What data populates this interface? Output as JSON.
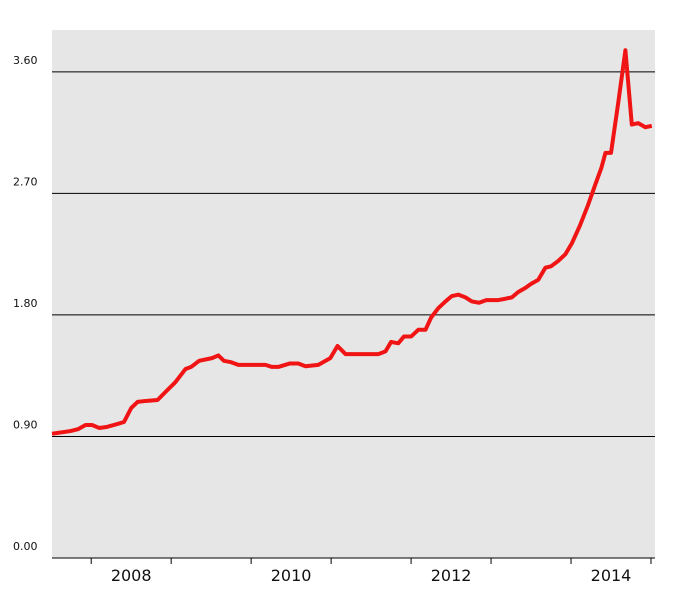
{
  "chart_data": {
    "type": "line",
    "x": [
      2007.51,
      2007.74,
      2007.84,
      2007.93,
      2008.01,
      2008.1,
      2008.19,
      2008.33,
      2008.41,
      2008.5,
      2008.58,
      2008.68,
      2008.83,
      2008.93,
      2009.05,
      2009.18,
      2009.25,
      2009.35,
      2009.51,
      2009.59,
      2009.66,
      2009.75,
      2009.84,
      2010.18,
      2010.26,
      2010.34,
      2010.48,
      2010.59,
      2010.68,
      2010.84,
      2010.99,
      2011.08,
      2011.18,
      2011.59,
      2011.68,
      2011.75,
      2011.84,
      2011.91,
      2012.0,
      2012.09,
      2012.18,
      2012.25,
      2012.34,
      2012.43,
      2012.51,
      2012.59,
      2012.68,
      2012.76,
      2012.85,
      2012.94,
      2013.09,
      2013.18,
      2013.26,
      2013.34,
      2013.43,
      2013.5,
      2013.59,
      2013.68,
      2013.75,
      2013.84,
      2013.93,
      2014.01,
      2014.11,
      2014.21,
      2014.3,
      2014.38,
      2014.43,
      2014.5,
      2014.59,
      2014.68,
      2014.76,
      2014.84,
      2014.93,
      2015.01
    ],
    "series": [
      {
        "color": "#f01414",
        "values": [
          0.92,
          0.94,
          0.955,
          0.985,
          0.985,
          0.963,
          0.97,
          0.993,
          1.007,
          1.11,
          1.156,
          1.163,
          1.17,
          1.23,
          1.3,
          1.4,
          1.415,
          1.46,
          1.48,
          1.5,
          1.46,
          1.45,
          1.43,
          1.43,
          1.415,
          1.415,
          1.44,
          1.44,
          1.42,
          1.43,
          1.48,
          1.57,
          1.51,
          1.51,
          1.53,
          1.6,
          1.59,
          1.64,
          1.64,
          1.69,
          1.69,
          1.78,
          1.85,
          1.9,
          1.94,
          1.95,
          1.93,
          1.9,
          1.89,
          1.91,
          1.91,
          1.92,
          1.93,
          1.97,
          2.0,
          2.03,
          2.06,
          2.15,
          2.16,
          2.2,
          2.25,
          2.33,
          2.46,
          2.61,
          2.76,
          2.89,
          3.0,
          3.0,
          3.37,
          3.76,
          3.21,
          3.22,
          3.19,
          3.2
        ]
      }
    ],
    "xlim": [
      2007.51,
      2015.05
    ],
    "xticks": [
      {
        "value": 2008.5,
        "label": "2008"
      },
      {
        "value": 2010.5,
        "label": "2010"
      },
      {
        "value": 2012.5,
        "label": "2012"
      },
      {
        "value": 2014.5,
        "label": "2014"
      }
    ],
    "xtick_marks": [
      2008,
      2009,
      2010,
      2011,
      2012,
      2013,
      2014,
      2015
    ],
    "ylim": [
      0,
      3.91
    ],
    "yticks": [
      {
        "value": 0,
        "label": "0.00"
      },
      {
        "value": 0.9,
        "label": "0.90"
      },
      {
        "value": 1.8,
        "label": "1.80"
      },
      {
        "value": 2.7,
        "label": "2.70"
      },
      {
        "value": 3.6,
        "label": "3.60"
      }
    ],
    "grid": true
  }
}
